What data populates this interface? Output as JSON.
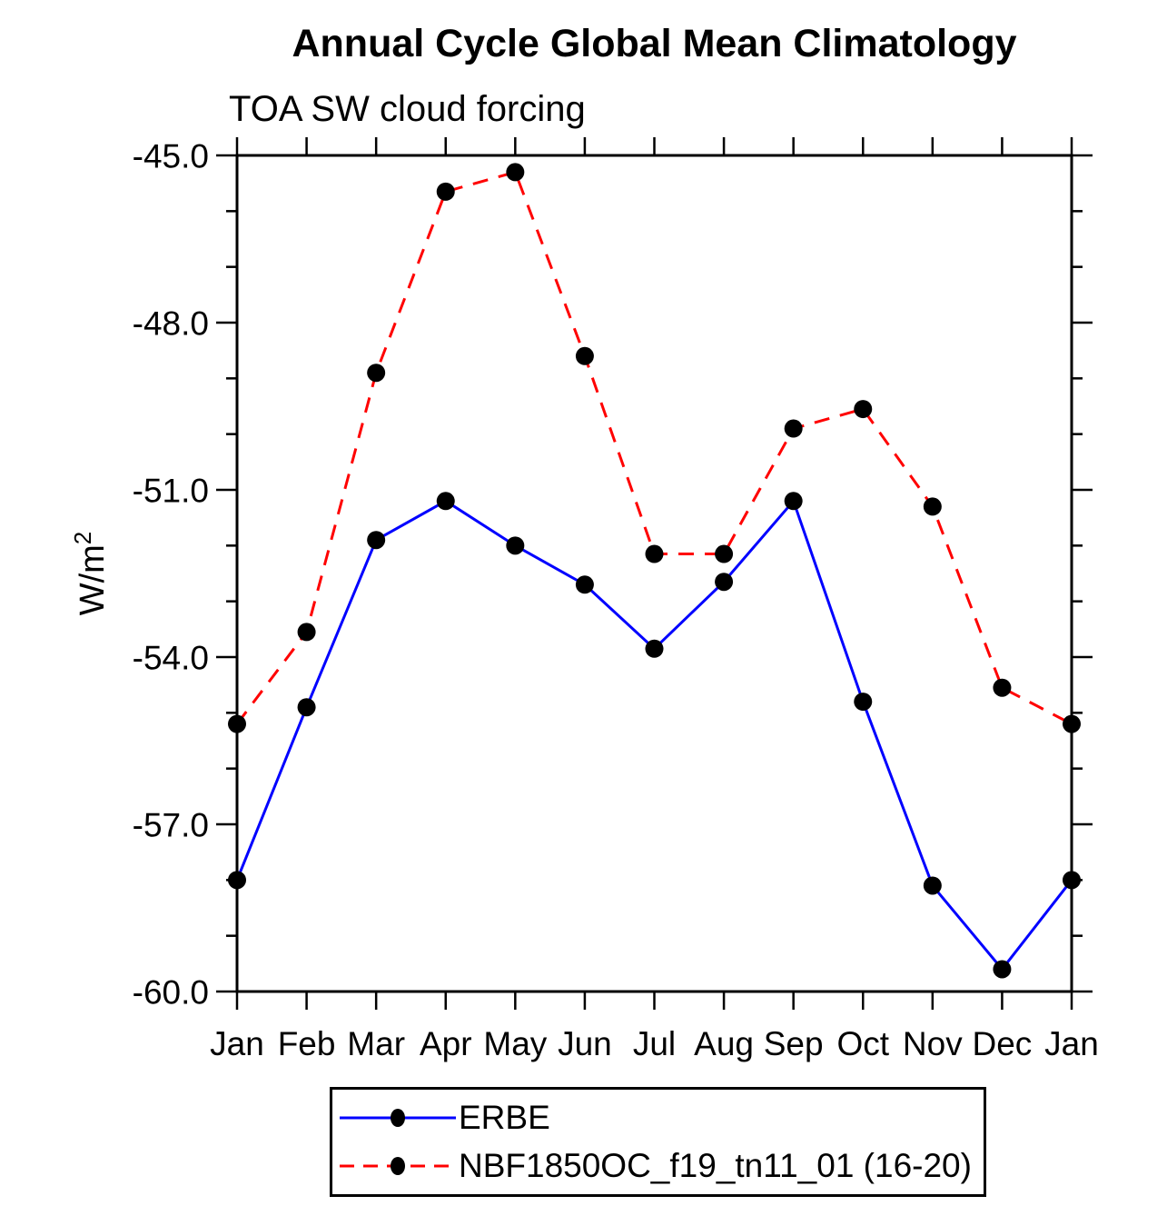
{
  "chart_data": {
    "type": "line",
    "title": "Annual Cycle Global Mean Climatology",
    "subtitle": "TOA SW cloud forcing",
    "ylabel_base": "W/m",
    "ylabel_exponent": "2",
    "categories": [
      "Jan",
      "Feb",
      "Mar",
      "Apr",
      "May",
      "Jun",
      "Jul",
      "Aug",
      "Sep",
      "Oct",
      "Nov",
      "Dec",
      "Jan"
    ],
    "series": [
      {
        "name": "ERBE",
        "color": "#0000ff",
        "line_style": "solid",
        "marker": "filled-black-circle",
        "values": [
          -58.0,
          -54.9,
          -51.9,
          -51.2,
          -52.0,
          -52.7,
          -53.85,
          -52.65,
          -51.2,
          -54.8,
          -58.1,
          -59.6,
          -58.0
        ]
      },
      {
        "name": "NBF1850OC_f19_tn11_01 (16-20)",
        "color": "#ff0000",
        "line_style": "dashed",
        "marker": "filled-black-circle",
        "values": [
          -55.2,
          -53.55,
          -48.9,
          -45.65,
          -45.3,
          -48.6,
          -52.15,
          -52.15,
          -49.9,
          -49.55,
          -51.3,
          -54.55,
          -55.2
        ]
      }
    ],
    "ylim": [
      -60.0,
      -45.0
    ],
    "yticks": [
      -45.0,
      -48.0,
      -51.0,
      -54.0,
      -57.0,
      -60.0
    ],
    "ytick_labels": [
      "-45.0",
      "-48.0",
      "-51.0",
      "-54.0",
      "-57.0",
      "-60.0"
    ],
    "y_minor_tick_step": 1.0,
    "x_minor_ticks": false,
    "grid": false,
    "axis_color": "#000000",
    "marker_color": "#000000",
    "legend_position": "bottom"
  }
}
